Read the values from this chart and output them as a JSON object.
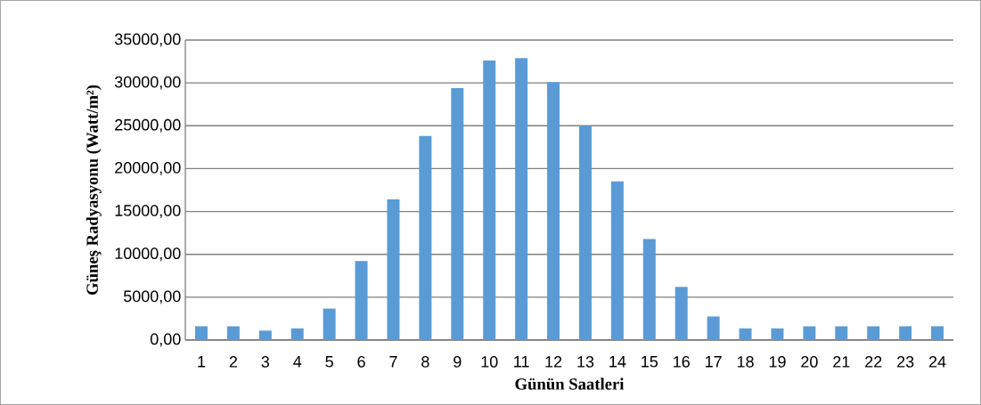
{
  "chart_data": {
    "type": "bar",
    "xlabel": "Günün  Saatleri",
    "ylabel": "Güneş  Radyasyonu  (Watt/m²)",
    "categories": [
      "1",
      "2",
      "3",
      "4",
      "5",
      "6",
      "7",
      "8",
      "9",
      "10",
      "11",
      "12",
      "13",
      "14",
      "15",
      "16",
      "17",
      "18",
      "19",
      "20",
      "21",
      "22",
      "23",
      "24"
    ],
    "values": [
      1600,
      1600,
      1100,
      1350,
      3670,
      9230,
      16400,
      23800,
      29400,
      32600,
      32900,
      30100,
      25000,
      18500,
      11800,
      6200,
      2750,
      1350,
      1350,
      1600,
      1600,
      1600,
      1600,
      1600
    ],
    "color": "#5b9bd5",
    "ylim": [
      0,
      35000
    ],
    "yticks": [
      {
        "value": 0,
        "label": "0,00"
      },
      {
        "value": 5000,
        "label": "5000,00"
      },
      {
        "value": 10000,
        "label": "10000,00"
      },
      {
        "value": 15000,
        "label": "15000,00"
      },
      {
        "value": 20000,
        "label": "20000,00"
      },
      {
        "value": 25000,
        "label": "25000,00"
      },
      {
        "value": 30000,
        "label": "30000,00"
      },
      {
        "value": 35000,
        "label": "35000,00"
      }
    ],
    "grid": "y"
  }
}
